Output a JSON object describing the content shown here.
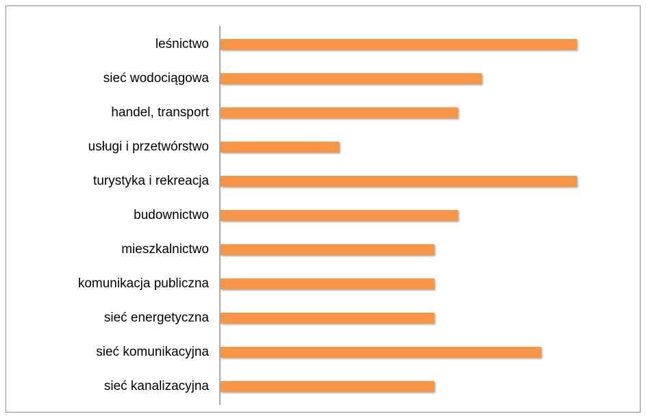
{
  "chart_data": {
    "type": "bar",
    "orientation": "horizontal",
    "categories": [
      "leśnictwo",
      "sieć wodociągowa",
      "handel, transport",
      "usługi i przetwórstwo",
      "turystyka i rekreacja",
      "budownictwo",
      "mieszkalnictwo",
      "komunikacja publiczna",
      "sieć energetyczna",
      "sieć komunikacyjna",
      "sieć kanalizacyjna"
    ],
    "values": [
      15,
      11,
      10,
      5,
      15,
      10,
      9,
      9,
      9,
      13.5,
      9
    ],
    "color": "#f79646",
    "xlim": [
      0,
      15
    ]
  }
}
